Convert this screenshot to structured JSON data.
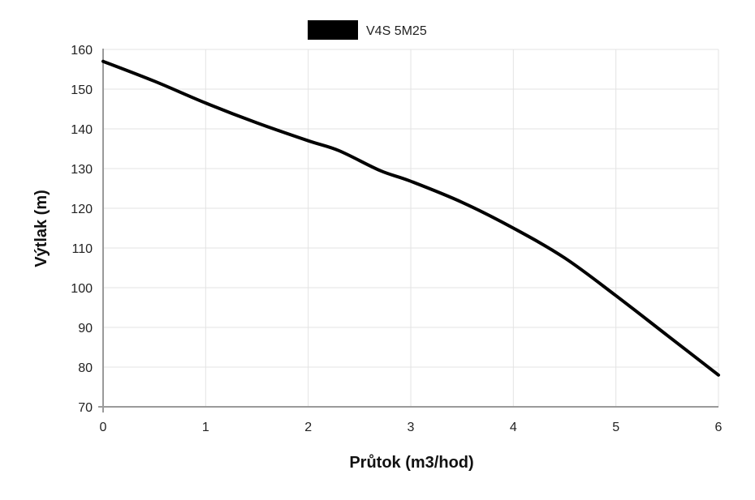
{
  "chart_data": {
    "type": "line",
    "xlabel": "Průtok (m3/hod)",
    "ylabel": "Výtlak (m)",
    "xlim": [
      0,
      6
    ],
    "ylim": [
      70,
      160
    ],
    "x_ticks": [
      "0",
      "1",
      "2",
      "3",
      "4",
      "5",
      "6"
    ],
    "y_ticks": [
      "70",
      "80",
      "90",
      "100",
      "110",
      "120",
      "130",
      "140",
      "150",
      "160"
    ],
    "grid": true,
    "legend_position": "top-center",
    "series": [
      {
        "name": "V4S 5M25",
        "color": "#000000",
        "x": [
          0,
          0.5,
          1,
          1.5,
          2,
          2.3,
          2.7,
          3,
          3.5,
          4,
          4.5,
          5,
          5.5,
          6
        ],
        "y": [
          157,
          152,
          146.5,
          141.5,
          137,
          134.5,
          129.5,
          126.8,
          121.5,
          115,
          107.5,
          98,
          88,
          78
        ]
      }
    ]
  }
}
